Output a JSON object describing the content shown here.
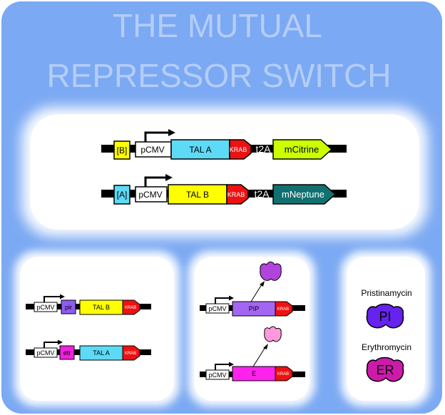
{
  "title": {
    "line1": "THE MUTUAL",
    "line2": "REPRESSOR SWITCH"
  },
  "top_constructs": [
    {
      "operator": "[B]",
      "promoter": "pCMV",
      "repressor": "TAL A",
      "krab": "KRAB",
      "linker": "t2A",
      "reporter": "mCitrine"
    },
    {
      "operator": "[A]",
      "promoter": "pCMV",
      "repressor": "TAL B",
      "krab": "KRAB",
      "linker": "t2A",
      "reporter": "mNeptune"
    }
  ],
  "left_constructs": [
    {
      "promoter": "pCMV",
      "operator": "pir",
      "repressor": "TAL B",
      "krab": "KRAB"
    },
    {
      "promoter": "pCMV",
      "operator": "etr",
      "repressor": "TAL A",
      "krab": "KRAB"
    }
  ],
  "middle_constructs": [
    {
      "promoter": "pCMV",
      "gene": "PIP",
      "krab": "KRAB"
    },
    {
      "promoter": "pCMV",
      "gene": "E",
      "krab": "KRAB"
    }
  ],
  "inducers": [
    {
      "name": "Pristinamycin",
      "symbol": "PI"
    },
    {
      "name": "Erythromycin",
      "symbol": "ER"
    }
  ],
  "colors": {
    "background": "#7ba9f3",
    "operator_b": "#ffff00",
    "operator_a": "#5ddaf5",
    "tal_a": "#5ddaf5",
    "tal_b": "#ffff00",
    "krab": "#ee1111",
    "mcitrine": "#ccff00",
    "mneptune": "#117070",
    "pir": "#8f5cf0",
    "etr": "#ee22dd",
    "pip": "#a366f2",
    "e": "#ff22ee",
    "protein_pip": "#b044dd",
    "protein_e": "#ff99dd",
    "pi": "#6622ee",
    "er": "#cc1aaa"
  }
}
